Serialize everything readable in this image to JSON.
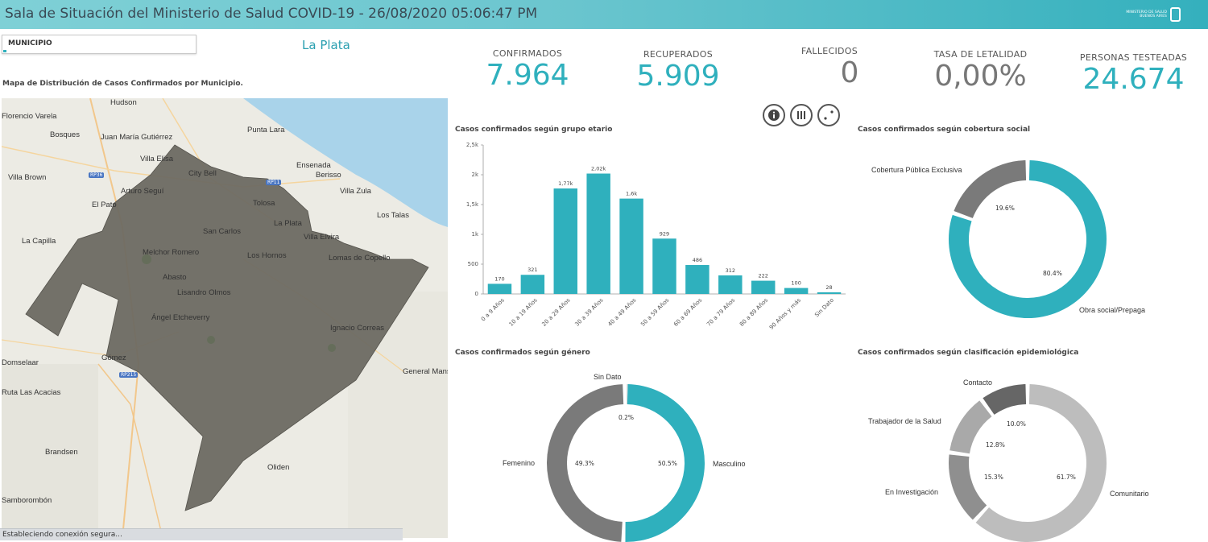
{
  "header": {
    "title": "Sala de Situación del Ministerio de Salud COVID-19 - 26/08/2020 05:06:47 PM",
    "logo_text": "MINISTERIO DE SALUD BUENOS AIRES"
  },
  "filter": {
    "label": "MUNICIPIO",
    "selected": "La Plata"
  },
  "map": {
    "title": "Mapa de Distribución de Casos Confirmados por Municipio.",
    "region_color": "#6d6a62",
    "places": [
      "Hudson",
      "Florencio Varela",
      "Bosques",
      "Juan María Gutiérrez",
      "Villa Elisa",
      "Punta Lara",
      "Ensenada",
      "Villa Brown",
      "City Bell",
      "Berisso",
      "Villa Zula",
      "Arturo Seguí",
      "Tolosa",
      "El Pato",
      "La Plata",
      "Los Talas",
      "San Carlos",
      "Villa Elvira",
      "La Capilla",
      "Melchor Romero",
      "Los Hornos",
      "Lomas de Copello",
      "Abasto",
      "Lisandro Olmos",
      "Ángel Etcheverry",
      "Ignacio Correas",
      "Domselaar",
      "Gómez",
      "General Mansilla",
      "Ruta Las Acacias",
      "Brandsen",
      "Oliden",
      "Samborombón"
    ],
    "routes": [
      "RP36",
      "RP11",
      "RP215"
    ]
  },
  "status": {
    "text": "Estableciendo conexión segura..."
  },
  "kpis": {
    "confirmados": {
      "label": "CONFIRMADOS",
      "value": "7.964"
    },
    "recuperados": {
      "label": "RECUPERADOS",
      "value": "5.909"
    },
    "fallecidos": {
      "label": "FALLECIDOS",
      "value": "0"
    },
    "letalidad": {
      "label": "TASA DE LETALIDAD",
      "value": "0,00%"
    },
    "testeadas": {
      "label": "PERSONAS TESTEADAS",
      "value": "24.674"
    }
  },
  "buttons": {
    "info": "info-icon",
    "columns": "columns-icon",
    "dots": "scatter-icon"
  },
  "colors": {
    "accent": "#2fb0bd",
    "grey": "#7a7a7a",
    "light_grey": "#b5b5b5"
  },
  "chart_data": [
    {
      "type": "bar",
      "title": "Casos confirmados según grupo etario",
      "categories": [
        "0 a 9 Años",
        "10 a 19 Años",
        "20 a 29 Años",
        "30 a 39 Años",
        "40 a 49 Años",
        "50 a 59 Años",
        "60 a 69 Años",
        "70 a 79 Años",
        "80 a 89 Años",
        "90 Años y más",
        "Sin Dato"
      ],
      "values": [
        170,
        321,
        1770,
        2020,
        1600,
        929,
        486,
        312,
        222,
        100,
        28
      ],
      "value_labels": [
        "170",
        "321",
        "1,77k",
        "2,02k",
        "1,6k",
        "929",
        "486",
        "312",
        "222",
        "100",
        "28"
      ],
      "yticks": [
        "0",
        "500",
        "1k",
        "1,5k",
        "2k",
        "2,5k"
      ],
      "ylim": [
        0,
        2500
      ],
      "color": "#2fb0bd"
    },
    {
      "type": "pie",
      "title": "Casos confirmados según cobertura social",
      "labels": [
        "Obra social/Prepaga",
        "Cobertura Pública Exclusiva"
      ],
      "values": [
        80.4,
        19.6
      ],
      "pct_labels": [
        "80.4%",
        "19.6%"
      ],
      "colors": [
        "#2fb0bd",
        "#7a7a7a"
      ]
    },
    {
      "type": "pie",
      "title": "Casos confirmados según género",
      "labels": [
        "Masculino",
        "Femenino",
        "Sin Dato"
      ],
      "values": [
        50.5,
        49.3,
        0.2
      ],
      "pct_labels": [
        "50.5%",
        "49.3%",
        "0.2%"
      ],
      "colors": [
        "#2fb0bd",
        "#7a7a7a",
        "#cfcfcf"
      ]
    },
    {
      "type": "pie",
      "title": "Casos confirmados según clasificación epidemiológica",
      "labels": [
        "Comunitario",
        "En Investigación",
        "Trabajador de la Salud",
        "Contacto"
      ],
      "values": [
        61.7,
        15.3,
        12.8,
        10.0
      ],
      "pct_labels": [
        "61.7%",
        "15.3%",
        "12.8%",
        "10.0%"
      ],
      "colors": [
        "#bdbdbd",
        "#8f8f8f",
        "#a9a9a9",
        "#666666"
      ]
    }
  ]
}
